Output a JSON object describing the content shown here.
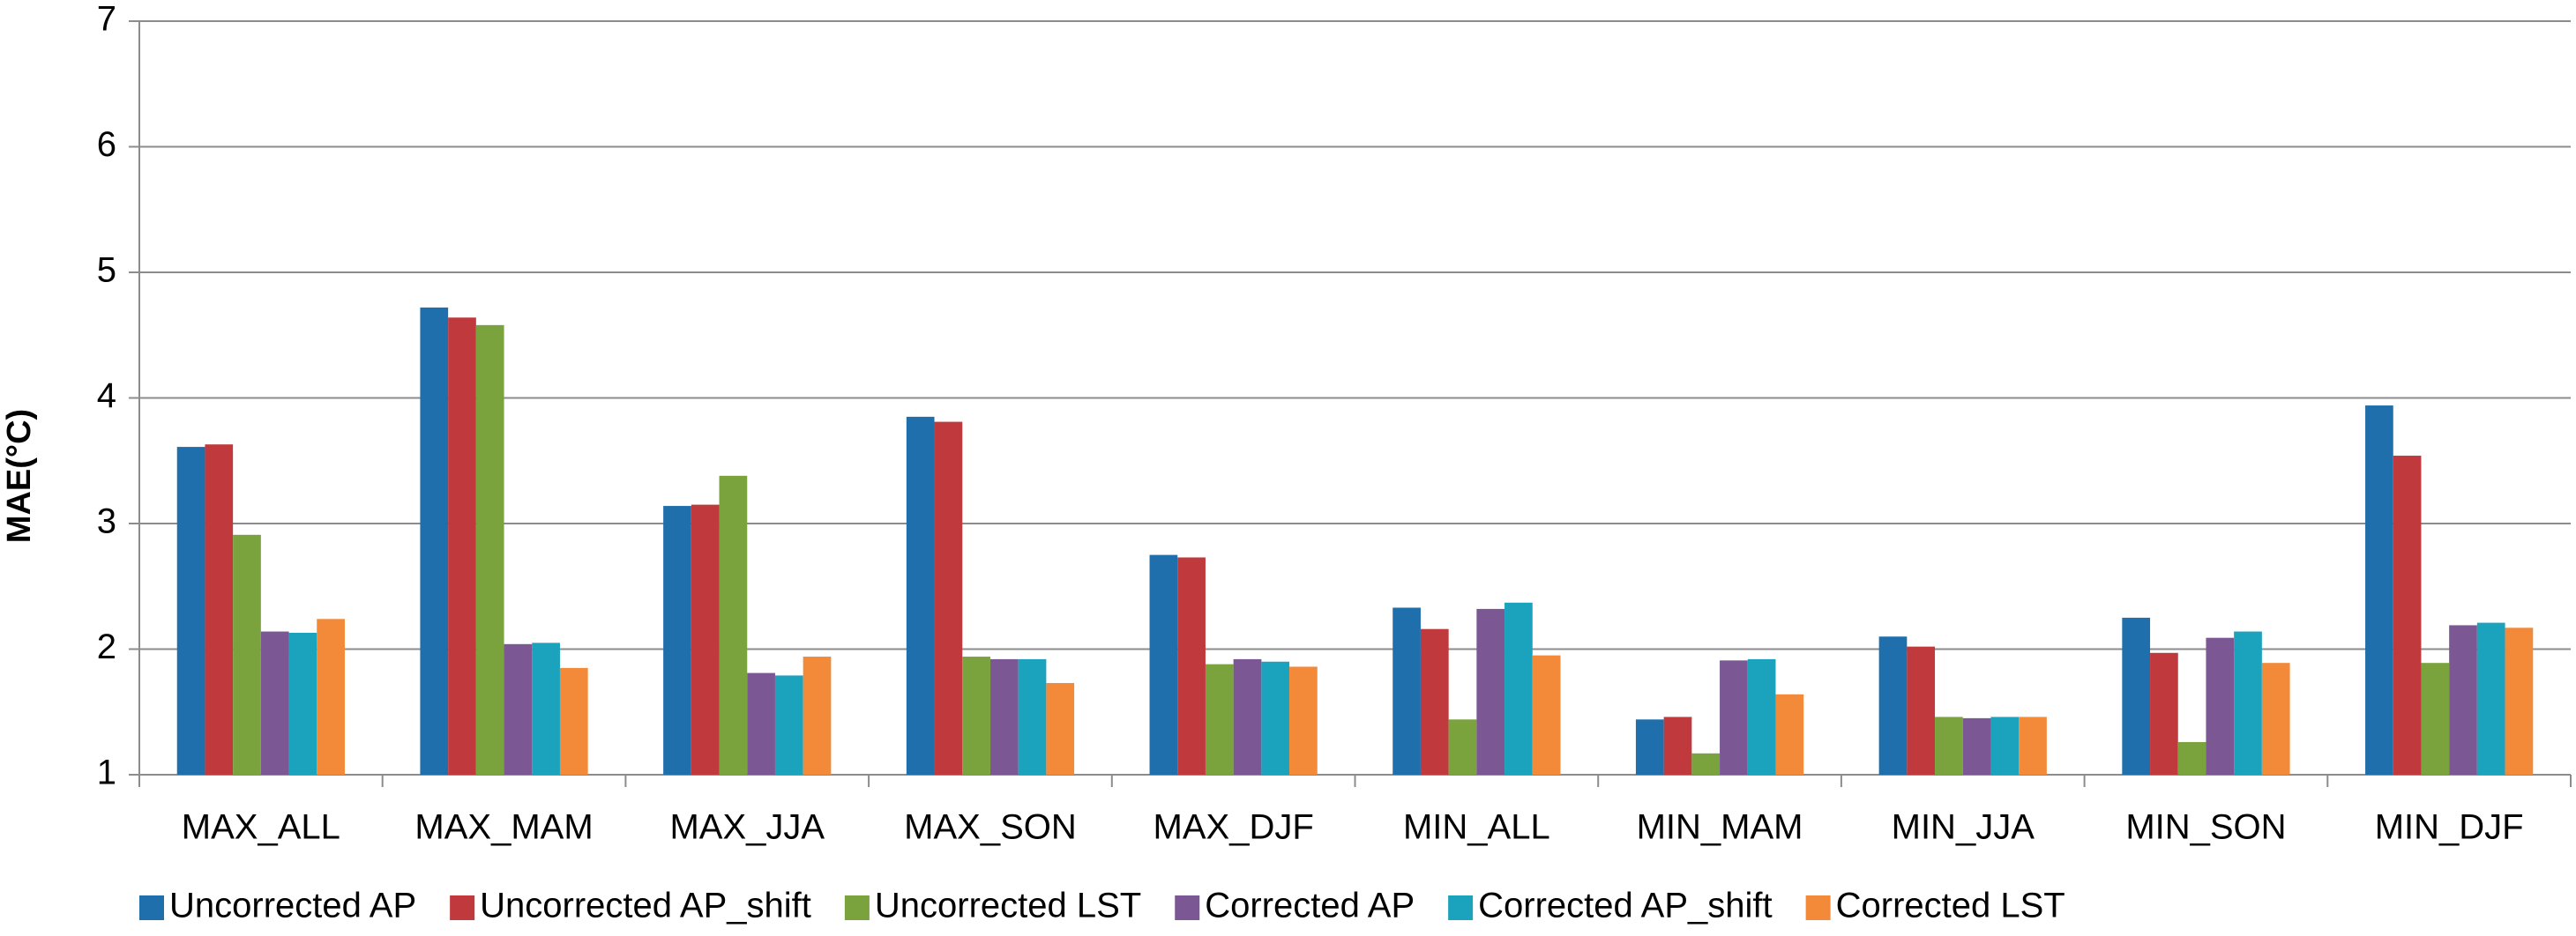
{
  "chart_data": {
    "type": "bar",
    "y_label": "MAE(°C)",
    "categories": [
      "MAX_ALL",
      "MAX_MAM",
      "MAX_JJA",
      "MAX_SON",
      "MAX_DJF",
      "MIN_ALL",
      "MIN_MAM",
      "MIN_JJA",
      "MIN_SON",
      "MIN_DJF"
    ],
    "series": [
      {
        "name": "Uncorrected AP",
        "color": "#1f6fad",
        "values": [
          3.61,
          4.72,
          3.14,
          3.85,
          2.75,
          2.33,
          1.44,
          2.1,
          2.25,
          3.94
        ]
      },
      {
        "name": "Uncorrected AP_shift",
        "color": "#c0393c",
        "values": [
          3.63,
          4.64,
          3.15,
          3.81,
          2.73,
          2.16,
          1.46,
          2.02,
          1.97,
          3.54
        ]
      },
      {
        "name": "Uncorrected LST",
        "color": "#7aa33e",
        "values": [
          2.91,
          4.58,
          3.38,
          1.94,
          1.88,
          1.44,
          1.17,
          1.46,
          1.26,
          1.89
        ]
      },
      {
        "name": "Corrected AP",
        "color": "#7b5894",
        "values": [
          2.14,
          2.04,
          1.81,
          1.92,
          1.92,
          2.32,
          1.91,
          1.45,
          2.09,
          2.19
        ]
      },
      {
        "name": "Corrected AP_shift",
        "color": "#1ba2bd",
        "values": [
          2.13,
          2.05,
          1.79,
          1.92,
          1.9,
          2.37,
          1.92,
          1.46,
          2.14,
          2.21
        ]
      },
      {
        "name": "Corrected LST",
        "color": "#f28a3a",
        "values": [
          2.24,
          1.85,
          1.94,
          1.73,
          1.86,
          1.95,
          1.64,
          1.46,
          1.89,
          2.17
        ]
      }
    ],
    "ylim": [
      1,
      7
    ],
    "yticks": [
      1,
      2,
      3,
      4,
      5,
      6,
      7
    ],
    "grid": true,
    "legend": "bottom"
  }
}
